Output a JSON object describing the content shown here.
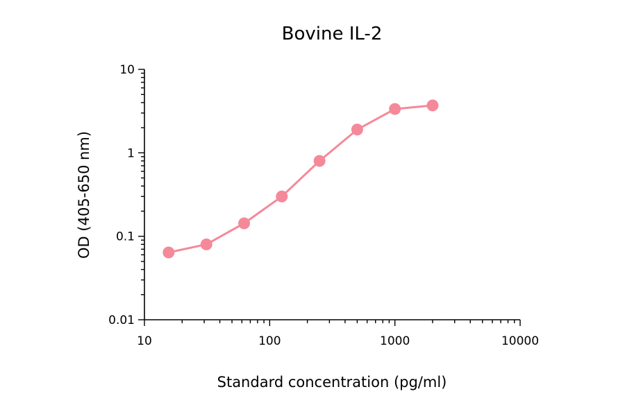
{
  "chart_data": {
    "type": "line",
    "title": "Bovine IL-2",
    "xlabel": "Standard concentration (pg/ml)",
    "ylabel": "OD (405-650 nm)",
    "x_scale": "log",
    "y_scale": "log",
    "xlim": [
      10,
      10000
    ],
    "ylim": [
      0.01,
      10
    ],
    "x_ticks": [
      {
        "value": 10,
        "label": "10"
      },
      {
        "value": 100,
        "label": "100"
      },
      {
        "value": 1000,
        "label": "1000"
      },
      {
        "value": 10000,
        "label": "10000"
      }
    ],
    "y_ticks": [
      {
        "value": 0.01,
        "label": "0.01"
      },
      {
        "value": 0.1,
        "label": "0.1"
      },
      {
        "value": 1,
        "label": "1"
      },
      {
        "value": 10,
        "label": "10"
      }
    ],
    "grid": false,
    "legend": "none",
    "series": [
      {
        "color": "#f4899a",
        "x": [
          15.6,
          31.25,
          62.5,
          125,
          250,
          500,
          1000,
          2000
        ],
        "values": [
          0.064,
          0.08,
          0.143,
          0.3,
          0.8,
          1.9,
          3.35,
          3.7
        ]
      }
    ]
  }
}
